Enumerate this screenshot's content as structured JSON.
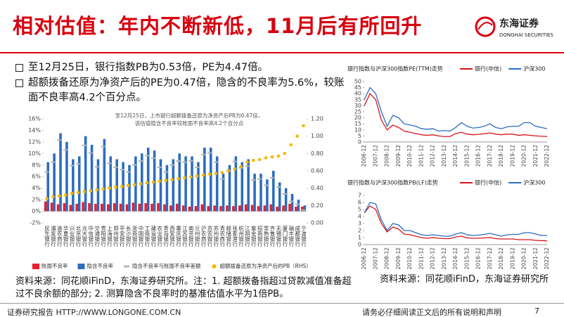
{
  "header": {
    "title": "相对估值：年内不断新低，11月后有所回升",
    "logo_cn": "东海证券",
    "logo_en": "DONGHAI SECURITIES"
  },
  "bullets": [
    "至12月25日，银行指数PB为0.53倍，PE为4.47倍。",
    "超额拨备还原为净资产后的PE为0.47倍，隐含的不良率为5.6%，较账面不良率高4.2个百分点。"
  ],
  "chart_data": [
    {
      "type": "bar",
      "annotations": [
        "至12月25日，上市银行超额拨备还原为净资产后PB为0.47倍，",
        "该估值隐含不良率较账面不良率高4.2个百分点"
      ],
      "categories": [
        "民生银行",
        "浦发银行",
        "渝农商行",
        "华夏银行",
        "兴业银行",
        "北京银行",
        "光大银行",
        "中信银行",
        "交通银行",
        "贵阳银行",
        "上海银行",
        "郑州银行",
        "平安银行",
        "长沙银行",
        "浙商银行",
        "中国银行",
        "工商银行",
        "建设银行",
        "农业银行",
        "青岛银行",
        "西安银行",
        "重庆银行",
        "江苏银行",
        "南京银行",
        "兰州银行",
        "沪农商行",
        "苏农银行",
        "苏州银行",
        "青农商行",
        "邮储银行",
        "张家港行",
        "杭州银行",
        "江阴银行",
        "紫金银行",
        "招商银行",
        "常熟银行",
        "齐鲁银行",
        "无锡银行",
        "厦门银行",
        "瑞丰银行",
        "成都银行",
        "宁波银行"
      ],
      "series": [
        {
          "name": "账面不良率",
          "type": "bar",
          "color": "#e8202a",
          "values": [
            1.7,
            1.5,
            1.2,
            1.4,
            1.1,
            1.3,
            1.6,
            1.4,
            1.3,
            1.3,
            1.2,
            1.4,
            1.3,
            1.2,
            1.5,
            1.3,
            1.4,
            1.3,
            1.4,
            1.2,
            1.0,
            1.3,
            1.0,
            0.8,
            0.9,
            1.2,
            0.9,
            1.0,
            0.9,
            1.0,
            0.9,
            1.0,
            1.2,
            1.1,
            0.9,
            1.0,
            1.2,
            0.8,
            1.0,
            1.3,
            0.8,
            0.8
          ]
        },
        {
          "name": "隐含不良率",
          "type": "bar",
          "color": "#2c6cc0",
          "values": [
            8.5,
            10,
            13.5,
            12,
            9,
            9.5,
            13,
            11.5,
            9,
            12.5,
            9.5,
            9,
            8.5,
            8,
            9.5,
            10,
            11,
            10.5,
            9,
            8,
            9,
            10,
            9.5,
            9.5,
            8.5,
            11,
            11,
            9.5,
            6.5,
            8,
            9.5,
            8.5,
            9,
            6.5,
            6.5,
            5.5,
            7,
            5,
            4,
            3,
            2,
            1
          ]
        },
        {
          "name": "隐含不良率与账面不良率差额",
          "type": "scatter",
          "marker": "dash",
          "color": "#b4b4b4",
          "values": [
            6.8,
            8.5,
            12.3,
            10.6,
            7.9,
            8.2,
            11.4,
            10.1,
            7.7,
            11.2,
            8.3,
            7.6,
            7.2,
            6.8,
            8.0,
            8.7,
            9.6,
            9.2,
            7.6,
            6.8,
            8.0,
            8.7,
            8.5,
            8.7,
            7.6,
            9.8,
            10.1,
            8.5,
            5.6,
            7.0,
            8.6,
            7.5,
            7.8,
            5.4,
            5.6,
            4.5,
            5.8,
            4.2,
            3.0,
            1.7,
            1.2,
            0.2
          ]
        },
        {
          "name": "超额拨备还原为净资产后的PB（RHS）",
          "type": "scatter",
          "marker": "circle",
          "axis": "y2",
          "color": "#f5b800",
          "values": [
            0.28,
            0.3,
            0.31,
            0.32,
            0.34,
            0.35,
            0.36,
            0.37,
            0.38,
            0.39,
            0.4,
            0.41,
            0.42,
            0.43,
            0.44,
            0.45,
            0.46,
            0.47,
            0.48,
            0.49,
            0.5,
            0.51,
            0.52,
            0.53,
            0.54,
            0.55,
            0.56,
            0.57,
            0.58,
            0.6,
            0.62,
            0.65,
            0.7,
            0.72,
            0.73,
            0.75,
            0.76,
            0.77,
            0.8,
            0.9,
            1.0,
            1.12
          ]
        }
      ],
      "ylim": [
        -2,
        16
      ],
      "yticks": [
        {
          "value": -2,
          "label": "-2%"
        },
        {
          "value": 0,
          "label": "0%"
        },
        {
          "value": 2,
          "label": "2%"
        },
        {
          "value": 4,
          "label": "4%"
        },
        {
          "value": 6,
          "label": "6%"
        },
        {
          "value": 8,
          "label": "8%"
        },
        {
          "value": 10,
          "label": "10%"
        },
        {
          "value": 12,
          "label": "12%"
        },
        {
          "value": 14,
          "label": "14%"
        },
        {
          "value": 16,
          "label": "16%"
        }
      ],
      "y2lim": [
        0,
        1.2
      ],
      "y2ticks": [
        {
          "value": 0,
          "label": "0.00"
        },
        {
          "value": 0.2,
          "label": "0.20"
        },
        {
          "value": 0.4,
          "label": "0.40"
        },
        {
          "value": 0.6,
          "label": "0.60"
        },
        {
          "value": 0.8,
          "label": "0.80"
        },
        {
          "value": 1.0,
          "label": "1.00"
        },
        {
          "value": 1.2,
          "label": "1.20"
        }
      ],
      "legend": "bottom"
    },
    {
      "type": "line",
      "title": "银行指数与沪深300指数PE(TTM)走势",
      "x": [
        "2006-12",
        null,
        "2007-12",
        null,
        "2008-12",
        null,
        "2009-12",
        null,
        "2010-12",
        null,
        "2011-12",
        null,
        "2012-12",
        null,
        "2013-12",
        null,
        "2014-12",
        null,
        "2015-12",
        null,
        "2016-12",
        null,
        "2017-12",
        null,
        "2018-12",
        null,
        "2019-12",
        null,
        "2020-12",
        null,
        "2021-12",
        null,
        "2022-12"
      ],
      "series": [
        {
          "name": "银行(中信)",
          "color": "#d9141c",
          "values": [
            30,
            40,
            35,
            18,
            10,
            14,
            12,
            9,
            8,
            7,
            6,
            5.5,
            6,
            5,
            4.5,
            4.5,
            7,
            8,
            6.5,
            6,
            6.3,
            6.8,
            7.5,
            6.5,
            6,
            6.5,
            6.5,
            5.5,
            6,
            5.5,
            5,
            4.8,
            4.5
          ]
        },
        {
          "name": "沪深300",
          "color": "#2c6cc0",
          "values": [
            35,
            45,
            40,
            25,
            13,
            22,
            20,
            15,
            14,
            13,
            11,
            10.5,
            11,
            9,
            9.5,
            9,
            12,
            16,
            13,
            11.5,
            12,
            13,
            15,
            12,
            11,
            12.5,
            13,
            13,
            16,
            16,
            13,
            12,
            11
          ]
        }
      ],
      "ylim": [
        0,
        50
      ],
      "yticks": [
        0,
        5,
        10,
        15,
        20,
        25,
        30,
        35,
        40,
        45,
        50
      ],
      "legend": "top"
    },
    {
      "type": "line",
      "title": "银行指数与沪深300指数PB(LF)走势",
      "x": [
        "2006-12",
        null,
        "2007-12",
        null,
        "2008-12",
        null,
        "2009-12",
        null,
        "2010-12",
        null,
        "2011-12",
        null,
        "2012-12",
        null,
        "2013-12",
        null,
        "2014-12",
        null,
        "2015-12",
        null,
        "2016-12",
        null,
        "2017-12",
        null,
        "2018-12",
        null,
        "2019-12",
        null,
        "2020-12",
        null,
        "2021-12",
        null,
        "2022-12"
      ],
      "series": [
        {
          "name": "银行(中信)",
          "color": "#d9141c",
          "values": [
            4.5,
            5.5,
            5,
            3,
            1.8,
            2.5,
            2.2,
            1.5,
            1.4,
            1.2,
            1,
            0.9,
            1,
            0.9,
            0.85,
            0.85,
            1.1,
            1.2,
            0.95,
            0.9,
            0.9,
            0.95,
            1.0,
            0.85,
            0.8,
            0.8,
            0.8,
            0.7,
            0.7,
            0.7,
            0.6,
            0.57,
            0.53
          ]
        },
        {
          "name": "沪深300",
          "color": "#2c6cc0",
          "values": [
            4.5,
            6,
            5.8,
            3.5,
            2,
            3,
            2.8,
            2,
            2,
            1.7,
            1.4,
            1.3,
            1.4,
            1.3,
            1.2,
            1.2,
            1.5,
            1.7,
            1.4,
            1.3,
            1.35,
            1.45,
            1.6,
            1.4,
            1.2,
            1.4,
            1.45,
            1.45,
            1.7,
            1.7,
            1.5,
            1.3,
            1.3
          ]
        }
      ],
      "ylim": [
        0,
        7
      ],
      "yticks": [
        0,
        1,
        2,
        3,
        4,
        5,
        6,
        7
      ],
      "legend": "top"
    }
  ],
  "notes": {
    "left": "资料来源：同花顺iFinD，东海证券研究所。注：1. 超额拨备指超过贷款减值准备超过不良余额的部分; 2. 测算隐含不良率时的基准估值水平为1倍PB。",
    "right": "资料来源：同花顺iFinD，东海证券研究所"
  },
  "footer": {
    "left": "证券研究报告 HTTP://WWW.LONGONE.COM.CN",
    "right": "请务必仔细阅读正文后的所有说明和声明",
    "page": 7
  }
}
